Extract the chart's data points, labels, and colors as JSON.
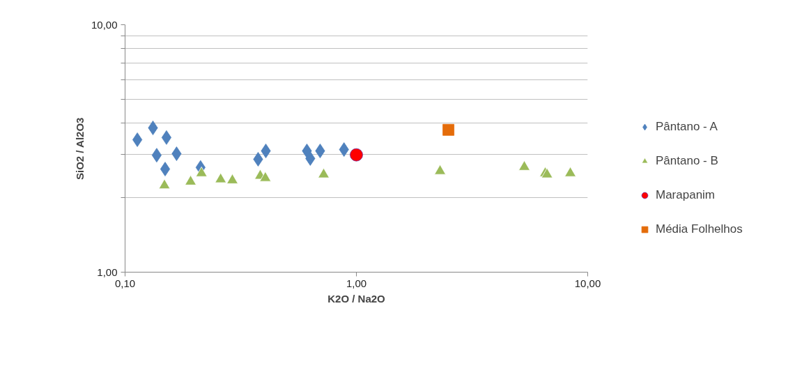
{
  "chart_data": {
    "type": "scatter",
    "xlabel": "K2O / Na2O",
    "ylabel": "SiO2 / Al2O3",
    "log": "xy",
    "xlim": [
      0.1,
      10
    ],
    "ylim": [
      1,
      10
    ],
    "xticks": [
      {
        "value": 0.1,
        "label": "0,10"
      },
      {
        "value": 1,
        "label": "1,00"
      },
      {
        "value": 10,
        "label": "10,00"
      }
    ],
    "yticks": [
      {
        "value": 1,
        "label": "1,00"
      },
      {
        "value": 2,
        "label": null
      },
      {
        "value": 3,
        "label": null
      },
      {
        "value": 4,
        "label": null
      },
      {
        "value": 5,
        "label": null
      },
      {
        "value": 6,
        "label": null
      },
      {
        "value": 7,
        "label": null
      },
      {
        "value": 8,
        "label": null
      },
      {
        "value": 9,
        "label": null
      },
      {
        "value": 10,
        "label": "10,00"
      }
    ],
    "grid": "y",
    "legend": "right",
    "series": [
      {
        "name": "Pântano - A",
        "color": "#4f81bd",
        "marker": "diamond",
        "x": [
          0.113,
          0.132,
          0.137,
          0.151,
          0.149,
          0.167,
          0.212,
          0.376,
          0.406,
          0.611,
          0.632,
          0.697,
          0.884
        ],
        "values": [
          3.43,
          3.83,
          2.97,
          3.5,
          2.61,
          3.01,
          2.65,
          2.86,
          3.09,
          3.09,
          2.88,
          3.09,
          3.13
        ]
      },
      {
        "name": "Pântano - B",
        "color": "#9bbb59",
        "marker": "triangle",
        "x": [
          0.148,
          0.192,
          0.214,
          0.259,
          0.291,
          0.384,
          0.404,
          0.722,
          2.3,
          5.32,
          6.55,
          6.67,
          8.41
        ],
        "values": [
          2.24,
          2.32,
          2.51,
          2.37,
          2.35,
          2.45,
          2.4,
          2.48,
          2.56,
          2.66,
          2.51,
          2.48,
          2.51
        ]
      },
      {
        "name": "Marapanim",
        "color": "#ff0000",
        "marker": "circle",
        "x": [
          1.0
        ],
        "values": [
          2.98
        ]
      },
      {
        "name": "Média Folhelhos",
        "color": "#e46c0a",
        "marker": "square",
        "x": [
          2.5
        ],
        "values": [
          3.76
        ]
      }
    ]
  }
}
